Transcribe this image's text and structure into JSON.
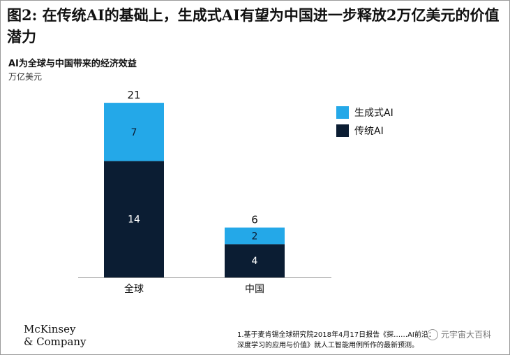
{
  "header": {
    "title": "图2: 在传统AI的基础上，生成式AI有望为中国进一步释放2万亿美元的价值潜力",
    "subtitle": "AI为全球与中国带来的经济效益",
    "unit": "万亿美元"
  },
  "chart_data": {
    "type": "bar",
    "stacked": true,
    "categories": [
      "全球",
      "中国"
    ],
    "series": [
      {
        "name": "传统AI",
        "values": [
          14,
          4
        ],
        "color": "#0b1d33"
      },
      {
        "name": "生成式AI",
        "values": [
          7,
          2
        ],
        "color": "#24a8e8"
      }
    ],
    "totals": [
      21,
      6
    ],
    "legend_position": "right",
    "grid": false
  },
  "footer": {
    "logo_line1": "McKinsey",
    "logo_line2": "& Company",
    "footnote_line1": "1.基于麦肯锡全球研究院2018年4月17日报告《探……AI前沿：",
    "footnote_line2": "深度学习的应用与价值》就人工智能用例所作的最新预测。",
    "watermark": "元宇宙大百科"
  }
}
